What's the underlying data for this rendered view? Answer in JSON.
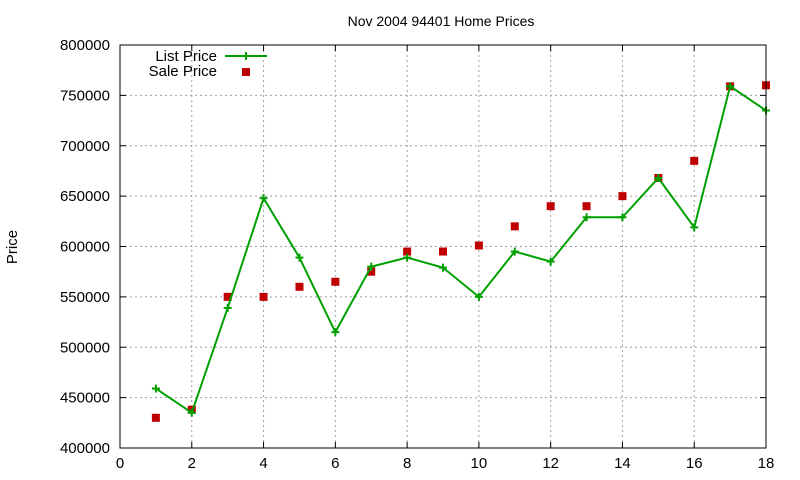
{
  "chart_data": {
    "type": "line",
    "title": "Nov 2004 94401 Home Prices",
    "xlabel": "",
    "ylabel": "Price",
    "xlim": [
      0,
      18
    ],
    "ylim": [
      400000,
      800000
    ],
    "x_ticks": [
      0,
      2,
      4,
      6,
      8,
      10,
      12,
      14,
      16,
      18
    ],
    "y_ticks": [
      400000,
      450000,
      500000,
      550000,
      600000,
      650000,
      700000,
      750000,
      800000
    ],
    "grid": true,
    "legend_position": "top-left",
    "series": [
      {
        "name": "List Price",
        "style": "line+cross",
        "color": "#00a000",
        "x": [
          1,
          2,
          3,
          4,
          5,
          6,
          7,
          8,
          9,
          10,
          11,
          12,
          13,
          14,
          15,
          16,
          17,
          18
        ],
        "y": [
          459000,
          435000,
          539000,
          648000,
          589000,
          515000,
          580000,
          589000,
          579000,
          550000,
          595000,
          585000,
          629000,
          629000,
          668000,
          619000,
          759000,
          735000
        ]
      },
      {
        "name": "Sale Price",
        "style": "square-points",
        "color": "#c00000",
        "x": [
          1,
          2,
          3,
          4,
          5,
          6,
          7,
          8,
          9,
          10,
          11,
          12,
          13,
          14,
          15,
          16,
          17,
          18
        ],
        "y": [
          430000,
          438000,
          550000,
          550000,
          560000,
          565000,
          575000,
          595000,
          595000,
          601000,
          620000,
          640000,
          640000,
          650000,
          668000,
          685000,
          759000,
          760000
        ]
      }
    ]
  }
}
